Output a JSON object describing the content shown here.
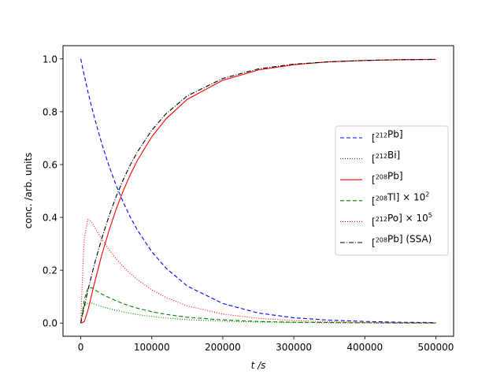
{
  "chart_data": {
    "type": "line",
    "title": "",
    "xlabel": "t /s",
    "ylabel": "conc. /arb. units",
    "xlim": [
      -25000,
      525000
    ],
    "ylim": [
      -0.05,
      1.05
    ],
    "xticks": [
      0,
      100000,
      200000,
      300000,
      400000,
      500000
    ],
    "xtick_labels": [
      "0",
      "100000",
      "200000",
      "300000",
      "400000",
      "500000"
    ],
    "yticks": [
      0.0,
      0.2,
      0.4,
      0.6,
      0.8,
      1.0
    ],
    "ytick_labels": [
      "0.0",
      "0.2",
      "0.4",
      "0.6",
      "0.8",
      "1.0"
    ],
    "grid": false,
    "legend_position": "center-right",
    "x": [
      0,
      2000,
      5000,
      10000,
      15000,
      20000,
      30000,
      40000,
      50000,
      60000,
      70000,
      80000,
      100000,
      120000,
      150000,
      200000,
      250000,
      300000,
      350000,
      400000,
      450000,
      500000
    ],
    "series": [
      {
        "name": "[212Pb]",
        "legend_label": {
          "pre": "[",
          "sup": "212",
          "post": "Pb]",
          "mult": "",
          "mult_sup": ""
        },
        "color": "#0000ff",
        "dash": "5,3",
        "values": [
          1.0,
          0.974,
          0.937,
          0.877,
          0.822,
          0.77,
          0.676,
          0.593,
          0.52,
          0.456,
          0.4,
          0.351,
          0.27,
          0.208,
          0.14,
          0.074,
          0.038,
          0.02,
          0.011,
          0.006,
          0.003,
          0.002
        ]
      },
      {
        "name": "[212Bi]",
        "legend_label": {
          "pre": "[",
          "sup": "212",
          "post": "Bi]",
          "mult": "",
          "mult_sup": ""
        },
        "color": "#008000",
        "dash": "1,2",
        "values": [
          0.0,
          0.04,
          0.066,
          0.076,
          0.075,
          0.071,
          0.062,
          0.055,
          0.048,
          0.042,
          0.037,
          0.032,
          0.025,
          0.019,
          0.013,
          0.007,
          0.004,
          0.002,
          0.001,
          0.001,
          0.0,
          0.0
        ]
      },
      {
        "name": "[208Pb]",
        "legend_label": {
          "pre": "[",
          "sup": "208",
          "post": "Pb]",
          "mult": "",
          "mult_sup": ""
        },
        "color": "#ff0000",
        "dash": "",
        "values": [
          0.0,
          0.001,
          0.006,
          0.047,
          0.103,
          0.159,
          0.262,
          0.352,
          0.432,
          0.502,
          0.563,
          0.617,
          0.705,
          0.773,
          0.847,
          0.919,
          0.958,
          0.978,
          0.989,
          0.994,
          0.997,
          0.998
        ]
      },
      {
        "name": "[208Tl] × 10^2",
        "legend_label": {
          "pre": "[",
          "sup": "208",
          "post": "Tl]",
          "mult": " × 10",
          "mult_sup": "2"
        },
        "color": "#008000",
        "dash": "5,3",
        "values": [
          0.0,
          0.03,
          0.09,
          0.132,
          0.134,
          0.125,
          0.109,
          0.096,
          0.084,
          0.073,
          0.064,
          0.056,
          0.043,
          0.033,
          0.022,
          0.012,
          0.006,
          0.003,
          0.002,
          0.001,
          0.0,
          0.0
        ]
      },
      {
        "name": "[212Po] × 10^5",
        "legend_label": {
          "pre": "[",
          "sup": "212",
          "post": "Po]",
          "mult": " × 10",
          "mult_sup": "5"
        },
        "color": "#ff0000",
        "dash": "1,2",
        "values": [
          0.0,
          0.15,
          0.32,
          0.392,
          0.385,
          0.36,
          0.316,
          0.277,
          0.243,
          0.213,
          0.187,
          0.164,
          0.126,
          0.097,
          0.065,
          0.034,
          0.018,
          0.009,
          0.005,
          0.002,
          0.001,
          0.0
        ]
      },
      {
        "name": "[208Pb] (SSA)",
        "legend_label": {
          "pre": "[",
          "sup": "208",
          "post": "Pb] (SSA)",
          "mult": "",
          "mult_sup": ""
        },
        "color": "#000000",
        "dash": "6,2,1,2",
        "values": [
          0.0,
          0.026,
          0.063,
          0.123,
          0.178,
          0.23,
          0.324,
          0.407,
          0.48,
          0.544,
          0.6,
          0.649,
          0.73,
          0.792,
          0.86,
          0.926,
          0.962,
          0.98,
          0.989,
          0.994,
          0.997,
          0.998
        ]
      }
    ]
  }
}
